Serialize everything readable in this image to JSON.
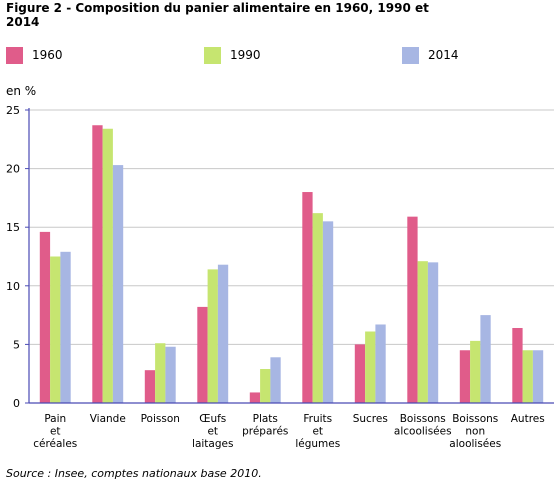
{
  "figure": {
    "title": "Figure 2 - Composition du panier alimentaire en 1960, 1990 et 2014",
    "source": "Source : Insee, comptes nationaux base 2010."
  },
  "colors": {
    "1960": "#e05c8a",
    "1990": "#c6e570",
    "2014": "#a7b6e3",
    "axis": "#4a4ab4",
    "grid": "#c8c8c8"
  },
  "chart_data": {
    "type": "bar",
    "ylabel": "en %",
    "ylim": [
      0,
      25
    ],
    "yticks": [
      0,
      5,
      10,
      15,
      20,
      25
    ],
    "grid": true,
    "legend_position": "top",
    "categories": [
      [
        "Pain",
        "et",
        "céréales"
      ],
      [
        "Viande"
      ],
      [
        "Poisson"
      ],
      [
        "Œufs",
        "et",
        "laitages"
      ],
      [
        "Plats",
        "préparés"
      ],
      [
        "Fruits",
        "et",
        "légumes"
      ],
      [
        "Sucres"
      ],
      [
        "Boissons",
        "alcoolisées"
      ],
      [
        "Boissons",
        "non",
        "aloolisées"
      ],
      [
        "Autres"
      ]
    ],
    "series": [
      {
        "name": "1960",
        "values": [
          14.6,
          23.7,
          2.8,
          8.2,
          0.9,
          18.0,
          5.0,
          15.9,
          4.5,
          6.4
        ]
      },
      {
        "name": "1990",
        "values": [
          12.5,
          23.4,
          5.1,
          11.4,
          2.9,
          16.2,
          6.1,
          12.1,
          5.3,
          4.5
        ]
      },
      {
        "name": "2014",
        "values": [
          12.9,
          20.3,
          4.8,
          11.8,
          3.9,
          15.5,
          6.7,
          12.0,
          7.5,
          4.5
        ]
      }
    ]
  }
}
